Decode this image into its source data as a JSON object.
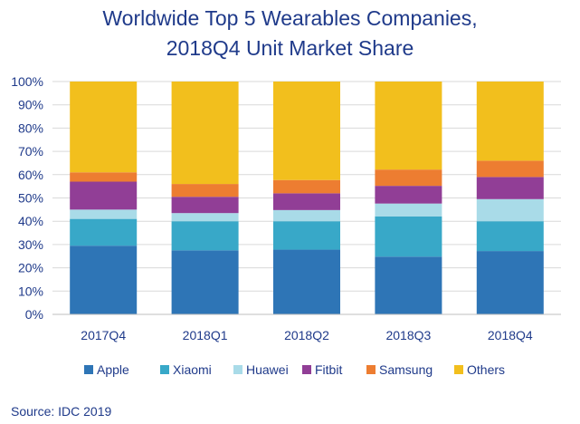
{
  "chart_data": {
    "type": "bar",
    "stacked": true,
    "title_line1": "Worldwide Top 5 Wearables Companies,",
    "title_line2": "2018Q4  Unit Market Share",
    "categories": [
      "2017Q4",
      "2018Q1",
      "2018Q2",
      "2018Q3",
      "2018Q4"
    ],
    "y_ticks": [
      "0%",
      "10%",
      "20%",
      "30%",
      "40%",
      "50%",
      "60%",
      "70%",
      "80%",
      "90%",
      "100%"
    ],
    "ylim": [
      0,
      100
    ],
    "grid": true,
    "legend_position": "bottom",
    "series": [
      {
        "name": "Apple",
        "color": "#2e75b6",
        "values": [
          29.5,
          27.5,
          27.8,
          24.8,
          27.2
        ]
      },
      {
        "name": "Xiaomi",
        "color": "#38a8c8",
        "values": [
          11.5,
          12.5,
          12.2,
          17.3,
          12.8
        ]
      },
      {
        "name": "Huawei",
        "color": "#a9dbe8",
        "values": [
          4.0,
          3.5,
          4.8,
          5.5,
          9.5
        ]
      },
      {
        "name": "Fitbit",
        "color": "#913e96",
        "values": [
          12.0,
          7.0,
          7.2,
          7.6,
          9.5
        ]
      },
      {
        "name": "Samsung",
        "color": "#ed7d31",
        "values": [
          4.0,
          5.5,
          5.7,
          7.0,
          7.0
        ]
      },
      {
        "name": "Others",
        "color": "#f2bf1d",
        "values": [
          39.0,
          44.0,
          42.3,
          37.8,
          34.0
        ]
      }
    ]
  },
  "source": "Source: IDC 2019"
}
